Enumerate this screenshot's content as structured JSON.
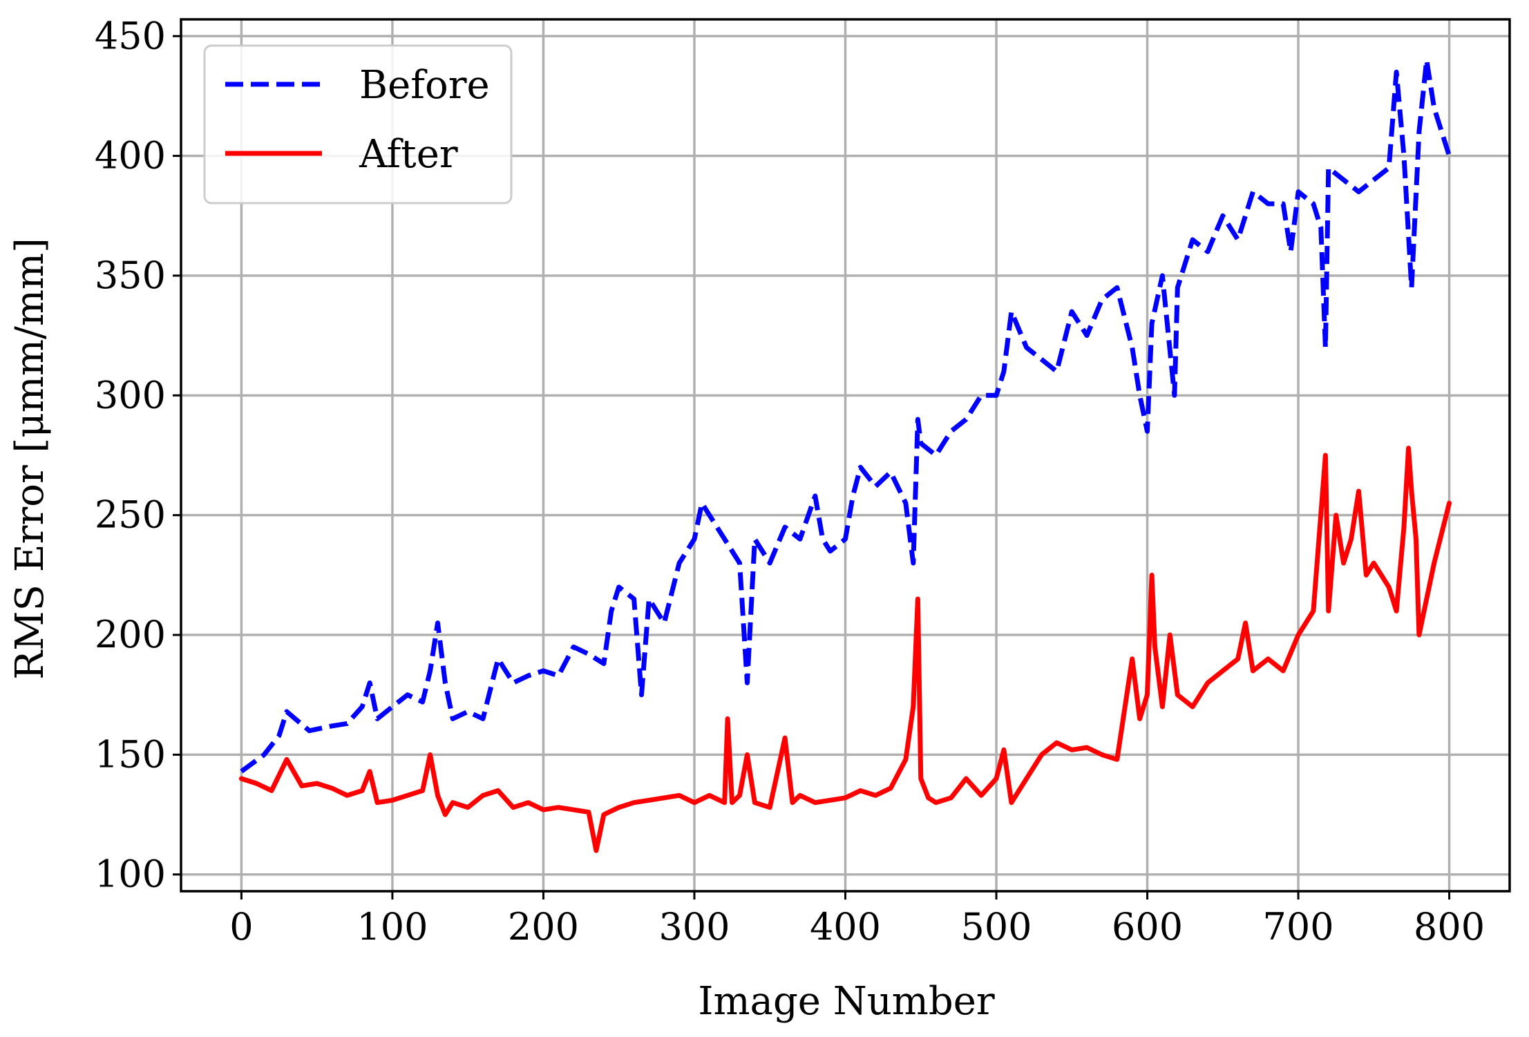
{
  "chart_data": {
    "type": "line",
    "title": "",
    "xlabel": "Image Number",
    "ylabel": "RMS Error [μmm/mm]",
    "xlim": [
      -40,
      840
    ],
    "ylim": [
      93,
      457
    ],
    "xticks": [
      0,
      100,
      200,
      300,
      400,
      500,
      600,
      700,
      800
    ],
    "yticks": [
      100,
      150,
      200,
      250,
      300,
      350,
      400,
      450
    ],
    "xtick_labels": [
      "0",
      "100",
      "200",
      "300",
      "400",
      "500",
      "600",
      "700",
      "800"
    ],
    "ytick_labels": [
      "100",
      "150",
      "200",
      "250",
      "300",
      "350",
      "400",
      "450"
    ],
    "grid": true,
    "legend_position": "top-left",
    "series": [
      {
        "name": "Before",
        "color": "#0000ff",
        "style": "dashed",
        "x": [
          0,
          15,
          25,
          30,
          45,
          60,
          70,
          80,
          85,
          90,
          100,
          110,
          120,
          125,
          130,
          135,
          140,
          150,
          160,
          170,
          180,
          190,
          200,
          210,
          220,
          230,
          240,
          245,
          250,
          260,
          265,
          270,
          280,
          290,
          300,
          305,
          310,
          320,
          330,
          335,
          340,
          350,
          360,
          370,
          380,
          385,
          390,
          400,
          405,
          410,
          420,
          430,
          440,
          445,
          448,
          450,
          460,
          470,
          480,
          490,
          500,
          505,
          510,
          520,
          530,
          540,
          550,
          560,
          570,
          580,
          590,
          595,
          600,
          603,
          610,
          618,
          620,
          630,
          640,
          650,
          660,
          670,
          680,
          690,
          695,
          700,
          710,
          715,
          718,
          720,
          730,
          740,
          750,
          760,
          765,
          770,
          775,
          780,
          785,
          790,
          800
        ],
        "y": [
          143,
          150,
          158,
          168,
          160,
          162,
          163,
          170,
          180,
          165,
          170,
          175,
          172,
          185,
          205,
          180,
          165,
          168,
          165,
          190,
          180,
          183,
          185,
          183,
          195,
          192,
          188,
          210,
          220,
          215,
          175,
          215,
          205,
          230,
          240,
          255,
          250,
          240,
          230,
          180,
          240,
          230,
          245,
          240,
          258,
          240,
          235,
          240,
          258,
          270,
          262,
          268,
          255,
          230,
          290,
          280,
          275,
          285,
          290,
          300,
          300,
          310,
          335,
          320,
          315,
          310,
          335,
          325,
          340,
          345,
          320,
          300,
          285,
          330,
          350,
          300,
          345,
          365,
          360,
          375,
          365,
          385,
          380,
          380,
          360,
          385,
          380,
          370,
          320,
          395,
          390,
          385,
          390,
          395,
          435,
          400,
          345,
          410,
          440,
          420,
          400
        ]
      },
      {
        "name": "After",
        "color": "#ff0000",
        "style": "solid",
        "x": [
          0,
          10,
          20,
          30,
          40,
          50,
          60,
          70,
          80,
          85,
          90,
          100,
          110,
          120,
          125,
          130,
          135,
          140,
          150,
          160,
          170,
          180,
          190,
          200,
          210,
          220,
          230,
          235,
          240,
          250,
          260,
          270,
          280,
          290,
          300,
          310,
          320,
          322,
          325,
          330,
          335,
          340,
          350,
          360,
          365,
          370,
          380,
          390,
          400,
          410,
          420,
          430,
          440,
          445,
          448,
          450,
          455,
          460,
          470,
          480,
          490,
          500,
          505,
          510,
          520,
          530,
          540,
          550,
          560,
          570,
          580,
          590,
          595,
          600,
          603,
          605,
          610,
          615,
          620,
          630,
          640,
          650,
          660,
          665,
          670,
          680,
          690,
          700,
          710,
          718,
          720,
          725,
          730,
          735,
          740,
          745,
          750,
          760,
          765,
          770,
          773,
          775,
          778,
          780,
          790,
          800
        ],
        "y": [
          140,
          138,
          135,
          148,
          137,
          138,
          136,
          133,
          135,
          143,
          130,
          131,
          133,
          135,
          150,
          133,
          125,
          130,
          128,
          133,
          135,
          128,
          130,
          127,
          128,
          127,
          126,
          110,
          125,
          128,
          130,
          131,
          132,
          133,
          130,
          133,
          130,
          165,
          130,
          133,
          150,
          130,
          128,
          157,
          130,
          133,
          130,
          131,
          132,
          135,
          133,
          136,
          148,
          170,
          215,
          140,
          132,
          130,
          132,
          140,
          133,
          140,
          152,
          130,
          140,
          150,
          155,
          152,
          153,
          150,
          148,
          190,
          165,
          175,
          225,
          195,
          170,
          200,
          175,
          170,
          180,
          185,
          190,
          205,
          185,
          190,
          185,
          200,
          210,
          275,
          210,
          250,
          230,
          240,
          260,
          225,
          230,
          220,
          210,
          245,
          278,
          260,
          240,
          200,
          230,
          255
        ]
      }
    ]
  }
}
